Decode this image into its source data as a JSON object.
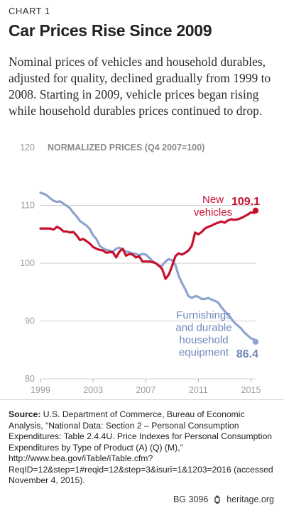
{
  "header": {
    "chart_label": "CHART 1",
    "title": "Car Prices Rise Since 2009",
    "subtitle": "Nominal prices of vehicles and household durables, adjusted for quality, declined gradually from 1999 to 2008. Starting in 2009, vehicle prices began rising while household durables prices continued to drop."
  },
  "chart_data": {
    "type": "line",
    "title": "NORMALIZED PRICES (Q4 2007=100)",
    "xlabel": "",
    "ylabel": "",
    "xlim": [
      1999,
      2015.35
    ],
    "ylim": [
      80,
      120
    ],
    "x_ticks": [
      "1999",
      "2003",
      "2007",
      "2011",
      "2015"
    ],
    "y_ticks": [
      "120",
      "110",
      "100",
      "90",
      "80"
    ],
    "grid": true,
    "colors": {
      "vehicles": "#c8102e",
      "furnishings": "#8fa3cf",
      "grid": "#cfcfcf",
      "axis_text": "#9a9a9a"
    },
    "series": [
      {
        "name": "New vehicles",
        "label_lines": [
          "New",
          "vehicles"
        ],
        "end_label": "109.1",
        "color": "#c8102e",
        "points": [
          [
            1999.0,
            106.0
          ],
          [
            1999.25,
            106.0
          ],
          [
            1999.5,
            106.0
          ],
          [
            1999.75,
            106.0
          ],
          [
            2000.0,
            105.8
          ],
          [
            2000.25,
            106.3
          ],
          [
            2000.5,
            106.0
          ],
          [
            2000.75,
            105.5
          ],
          [
            2001.0,
            105.5
          ],
          [
            2001.25,
            105.3
          ],
          [
            2001.5,
            105.4
          ],
          [
            2001.75,
            104.8
          ],
          [
            2002.0,
            104.0
          ],
          [
            2002.25,
            104.2
          ],
          [
            2002.5,
            103.8
          ],
          [
            2002.75,
            103.4
          ],
          [
            2003.0,
            102.8
          ],
          [
            2003.25,
            102.5
          ],
          [
            2003.5,
            102.3
          ],
          [
            2003.75,
            102.2
          ],
          [
            2004.0,
            101.8
          ],
          [
            2004.25,
            101.9
          ],
          [
            2004.5,
            101.9
          ],
          [
            2004.75,
            101.0
          ],
          [
            2005.0,
            102.0
          ],
          [
            2005.25,
            102.5
          ],
          [
            2005.5,
            101.3
          ],
          [
            2005.75,
            101.6
          ],
          [
            2006.0,
            101.5
          ],
          [
            2006.25,
            101.0
          ],
          [
            2006.5,
            101.2
          ],
          [
            2006.75,
            100.3
          ],
          [
            2007.0,
            100.3
          ],
          [
            2007.25,
            100.3
          ],
          [
            2007.5,
            100.2
          ],
          [
            2007.75,
            100.0
          ],
          [
            2008.0,
            99.6
          ],
          [
            2008.25,
            99.0
          ],
          [
            2008.5,
            97.3
          ],
          [
            2008.75,
            98.0
          ],
          [
            2009.0,
            99.5
          ],
          [
            2009.25,
            101.2
          ],
          [
            2009.5,
            101.7
          ],
          [
            2009.75,
            101.5
          ],
          [
            2010.0,
            101.8
          ],
          [
            2010.25,
            102.2
          ],
          [
            2010.5,
            103.0
          ],
          [
            2010.75,
            105.3
          ],
          [
            2011.0,
            105.0
          ],
          [
            2011.25,
            105.4
          ],
          [
            2011.5,
            106.0
          ],
          [
            2011.75,
            106.3
          ],
          [
            2012.0,
            106.5
          ],
          [
            2012.25,
            106.8
          ],
          [
            2012.5,
            107.0
          ],
          [
            2012.75,
            107.2
          ],
          [
            2013.0,
            107.0
          ],
          [
            2013.25,
            107.4
          ],
          [
            2013.5,
            107.6
          ],
          [
            2013.75,
            107.5
          ],
          [
            2014.0,
            107.6
          ],
          [
            2014.25,
            107.8
          ],
          [
            2014.5,
            108.1
          ],
          [
            2014.75,
            108.4
          ],
          [
            2015.0,
            108.8
          ],
          [
            2015.25,
            108.7
          ],
          [
            2015.35,
            109.1
          ]
        ]
      },
      {
        "name": "Furnishings and durable household equipment",
        "label_lines": [
          "Furnishings",
          "and durable",
          "household",
          "equipment"
        ],
        "end_label": "86.4",
        "color": "#8fa3cf",
        "points": [
          [
            1999.0,
            112.2
          ],
          [
            1999.25,
            112.0
          ],
          [
            1999.5,
            111.7
          ],
          [
            1999.75,
            111.2
          ],
          [
            2000.0,
            110.8
          ],
          [
            2000.25,
            110.6
          ],
          [
            2000.5,
            110.7
          ],
          [
            2000.75,
            110.3
          ],
          [
            2001.0,
            109.9
          ],
          [
            2001.25,
            109.5
          ],
          [
            2001.5,
            108.7
          ],
          [
            2001.75,
            108.1
          ],
          [
            2002.0,
            107.3
          ],
          [
            2002.25,
            106.9
          ],
          [
            2002.5,
            106.5
          ],
          [
            2002.75,
            105.9
          ],
          [
            2003.0,
            104.8
          ],
          [
            2003.25,
            104.2
          ],
          [
            2003.5,
            103.0
          ],
          [
            2003.75,
            102.6
          ],
          [
            2004.0,
            102.3
          ],
          [
            2004.25,
            102.2
          ],
          [
            2004.5,
            102.0
          ],
          [
            2004.75,
            102.5
          ],
          [
            2005.0,
            102.7
          ],
          [
            2005.25,
            102.3
          ],
          [
            2005.5,
            102.0
          ],
          [
            2005.75,
            101.9
          ],
          [
            2006.0,
            101.7
          ],
          [
            2006.25,
            101.6
          ],
          [
            2006.5,
            101.4
          ],
          [
            2006.75,
            101.6
          ],
          [
            2007.0,
            101.5
          ],
          [
            2007.25,
            101.0
          ],
          [
            2007.5,
            100.4
          ],
          [
            2007.75,
            100.0
          ],
          [
            2008.0,
            99.5
          ],
          [
            2008.25,
            99.6
          ],
          [
            2008.5,
            100.3
          ],
          [
            2008.75,
            100.7
          ],
          [
            2009.0,
            100.5
          ],
          [
            2009.25,
            99.7
          ],
          [
            2009.5,
            97.8
          ],
          [
            2009.75,
            96.6
          ],
          [
            2010.0,
            95.5
          ],
          [
            2010.25,
            94.3
          ],
          [
            2010.5,
            94.0
          ],
          [
            2010.75,
            94.3
          ],
          [
            2011.0,
            94.2
          ],
          [
            2011.25,
            93.8
          ],
          [
            2011.5,
            93.8
          ],
          [
            2011.75,
            94.0
          ],
          [
            2012.0,
            93.7
          ],
          [
            2012.25,
            93.5
          ],
          [
            2012.5,
            93.2
          ],
          [
            2012.75,
            92.4
          ],
          [
            2013.0,
            91.7
          ],
          [
            2013.25,
            91.1
          ],
          [
            2013.5,
            90.4
          ],
          [
            2013.75,
            89.7
          ],
          [
            2014.0,
            89.2
          ],
          [
            2014.25,
            88.7
          ],
          [
            2014.5,
            88.0
          ],
          [
            2014.75,
            87.5
          ],
          [
            2015.0,
            87.0
          ],
          [
            2015.25,
            86.8
          ],
          [
            2015.35,
            86.4
          ]
        ]
      }
    ]
  },
  "source": {
    "label": "Source:",
    "text": "U.S. Department of Commerce, Bureau of Economic Analysis, “National Data: Section 2 – Personal Consumption Expenditures: Table 2.4.4U. Price Indexes for Personal Consumption Expenditures by Type of Product (A) (Q) (M),” http://www.bea.gov/iTable/iTable.cfm?ReqID=12&step=1#reqid=12&step=3&isuri=1&1203=2016 (accessed November 4, 2015)."
  },
  "footer": {
    "id": "BG 3096",
    "site": "heritage.org",
    "logo_icon": "lantern-icon"
  }
}
